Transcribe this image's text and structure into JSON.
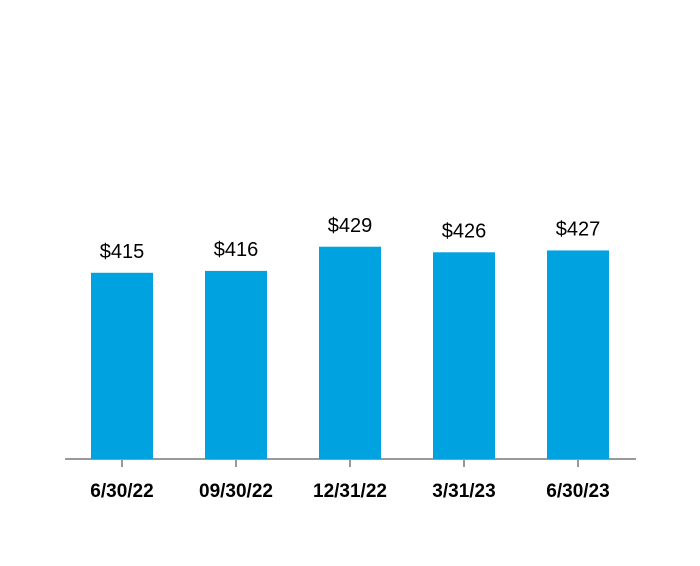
{
  "chart_data": {
    "type": "bar",
    "categories": [
      "6/30/22",
      "09/30/22",
      "12/31/22",
      "3/31/23",
      "6/30/23"
    ],
    "values": [
      415,
      416,
      429,
      426,
      427
    ],
    "value_labels": [
      "$415",
      "$416",
      "$429",
      "$426",
      "$427"
    ],
    "color": "#00a3e0",
    "ylim": [
      315,
      540
    ]
  }
}
